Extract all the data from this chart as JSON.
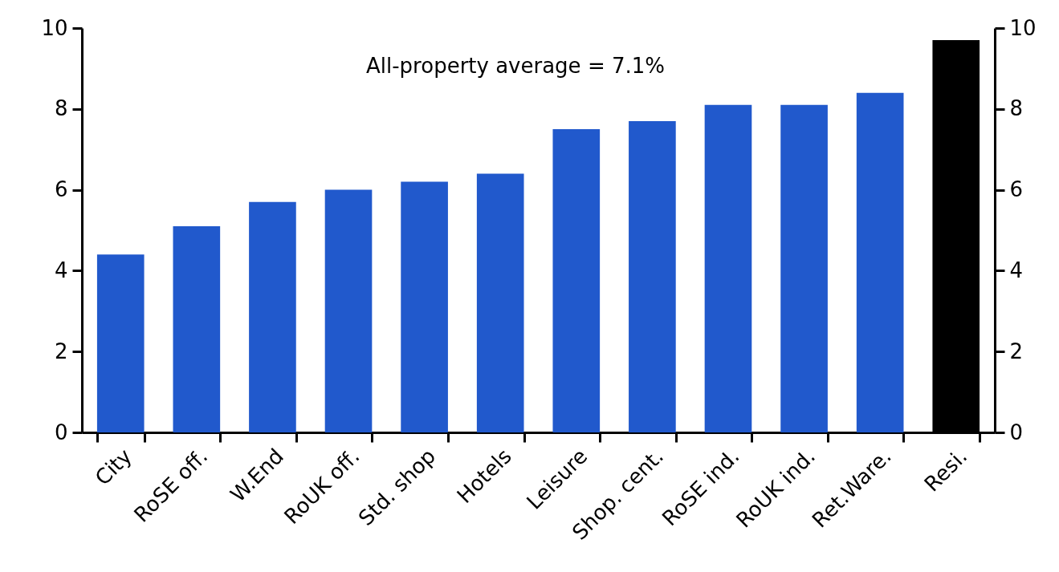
{
  "chart_data": {
    "type": "bar",
    "categories": [
      "City",
      "RoSE off.",
      "W.End",
      "RoUK off.",
      "Std. shop",
      "Hotels",
      "Leisure",
      "Shop. cent.",
      "RoSE ind.",
      "RoUK ind.",
      "Ret.Ware.",
      "Resi."
    ],
    "values": [
      4.4,
      5.1,
      5.7,
      6.0,
      6.2,
      6.4,
      7.5,
      7.7,
      8.1,
      8.1,
      8.4,
      9.7
    ],
    "colors": [
      "#2159cc",
      "#2159cc",
      "#2159cc",
      "#2159cc",
      "#2159cc",
      "#2159cc",
      "#2159cc",
      "#2159cc",
      "#2159cc",
      "#2159cc",
      "#2159cc",
      "#000000"
    ],
    "ylim": [
      0,
      10
    ],
    "yticks": [
      0,
      2,
      4,
      6,
      8,
      10
    ],
    "y2lim": [
      0,
      10
    ],
    "y2ticks": [
      0,
      2,
      4,
      6,
      8,
      10
    ],
    "annotations": [
      "All-property average = 7.1%"
    ],
    "grid": false,
    "legend": false
  }
}
